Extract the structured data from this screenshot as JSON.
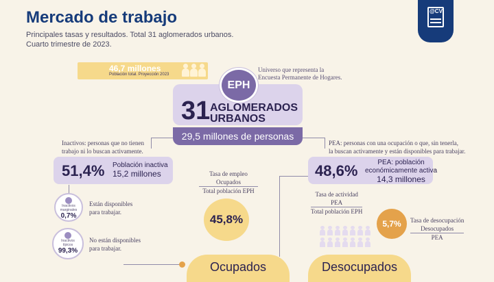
{
  "header": {
    "title": "Mercado de trabajo",
    "subtitle_line1": "Principales tasas y resultados. Total 31 aglomerados urbanos.",
    "subtitle_line2": "Cuarto trimestre de 2023."
  },
  "logo": {
    "text": "@CV",
    "icon": "cv-document-icon"
  },
  "population": {
    "value": "46,7 millones",
    "label": "Población total. Proyección 2023"
  },
  "eph": {
    "badge": "EPH",
    "note_line1": "Universo que representa la",
    "note_line2": "Encuesta Permanente de Hogares.",
    "number": "31",
    "label_line1": "AGLOMERADOS",
    "label_line2": "URBANOS",
    "people": "29,5 millones de personas"
  },
  "inactivos": {
    "note_line1": "Inactivos: personas que no tienen",
    "note_line2": "trabajo ni lo buscan activamente.",
    "percent": "51,4%",
    "label": "Población inactiva",
    "value": "15,2 millones",
    "marginales": {
      "label_line1": "Inactivos",
      "label_line2": "marginales",
      "value": "0,7%",
      "desc_line1": "Están disponibles",
      "desc_line2": "para trabajar."
    },
    "tipicos": {
      "label_line1": "Inactivos",
      "label_line2": "típicos",
      "value": "99,3%",
      "desc_line1": "No están disponibles",
      "desc_line2": "para trabajar."
    }
  },
  "empleo": {
    "title": "Tasa de empleo",
    "numerator": "Ocupados",
    "denominator": "Total población EPH",
    "value": "45,8%"
  },
  "pea": {
    "note_line1": "PEA: personas con una ocupación o que, sin tenerla,",
    "note_line2": "la buscan activamente y están disponibles para trabajar.",
    "percent": "48,6%",
    "label_line1": "PEA: población",
    "label_line2": "económicamente activa",
    "value": "14,3 millones"
  },
  "actividad": {
    "title": "Tasa de actividad",
    "numerator": "PEA",
    "denominator": "Total población EPH"
  },
  "desocupacion": {
    "title": "Tasa de desocupación",
    "numerator": "Desocupados",
    "denominator": "PEA",
    "value": "5,7%"
  },
  "bottom": {
    "ocupados": "Ocupados",
    "desocupados": "Desocupados"
  }
}
